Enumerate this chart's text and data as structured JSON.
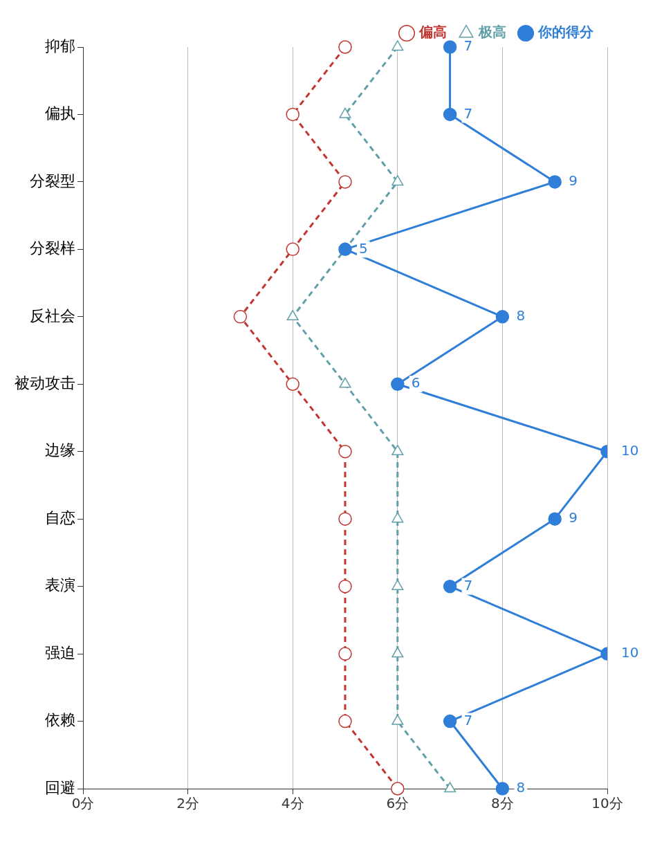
{
  "chart_data": {
    "type": "line",
    "orientation": "horizontal",
    "categories": [
      "抑郁",
      "偏执",
      "分裂型",
      "分裂样",
      "反社会",
      "被动攻击",
      "边缘",
      "自恋",
      "表演",
      "强迫",
      "依赖",
      "回避"
    ],
    "series": [
      {
        "name": "偏高",
        "color": "#c23531",
        "marker": "circle",
        "line_style": "dashed",
        "values": [
          5,
          4,
          5,
          4,
          3,
          4,
          5,
          5,
          5,
          5,
          5,
          6
        ]
      },
      {
        "name": "极高",
        "color": "#61a0a8",
        "marker": "triangle",
        "line_style": "dashed",
        "values": [
          6,
          5,
          6,
          5,
          4,
          5,
          6,
          6,
          6,
          6,
          6,
          7
        ]
      },
      {
        "name": "你的得分",
        "color": "#2f7ed8",
        "marker": "circle",
        "line_style": "solid",
        "values": [
          7,
          7,
          9,
          5,
          8,
          6,
          10,
          9,
          7,
          10,
          7,
          8
        ],
        "value_labels": [
          "7",
          "7",
          "9",
          "5",
          "8",
          "6",
          "10",
          "9",
          "7",
          "10",
          "7",
          "8"
        ]
      }
    ],
    "xlim": [
      0,
      10
    ],
    "xticks": [
      {
        "value": 0,
        "label": "0分"
      },
      {
        "value": 2,
        "label": "2分"
      },
      {
        "value": 4,
        "label": "4分"
      },
      {
        "value": 6,
        "label": "6分"
      },
      {
        "value": 8,
        "label": "8分"
      },
      {
        "value": 10,
        "label": "10分"
      }
    ],
    "grid": "x",
    "legend": "top right"
  }
}
